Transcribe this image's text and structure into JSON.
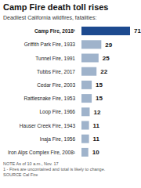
{
  "chart_data": {
    "type": "bar",
    "orientation": "horizontal",
    "title": "Camp Fire death toll rises",
    "subtitle": "Deadliest California wildfires, fatalities:",
    "categories": [
      "Camp Fire, 2018¹",
      "Griffith Park Fire, 1933",
      "Tunnel Fire, 1991",
      "Tubbs Fire, 2017",
      "Cedar Fire, 2003",
      "Rattlesnake Fire, 1953",
      "Loop Fire, 1966",
      "Hauser Creek Fire, 1943",
      "Inaja Fire, 1956",
      "Iron Alps Complex Fire, 2008¹"
    ],
    "values": [
      71,
      29,
      25,
      22,
      15,
      15,
      12,
      11,
      11,
      10
    ],
    "colors": [
      "#1d4a8f",
      "#9fb3cb",
      "#9fb3cb",
      "#9fb3cb",
      "#9fb3cb",
      "#9fb3cb",
      "#9fb3cb",
      "#9fb3cb",
      "#9fb3cb",
      "#9fb3cb"
    ],
    "xlim": [
      0,
      71
    ],
    "xticks": [],
    "tick_labels": "y",
    "data_labels": true,
    "annotations": [
      "NOTE As of 10 a.m., Nov. 17",
      "1 - Fires are uncontained and total is likely to change.",
      "SOURCE Cal Fire"
    ]
  }
}
